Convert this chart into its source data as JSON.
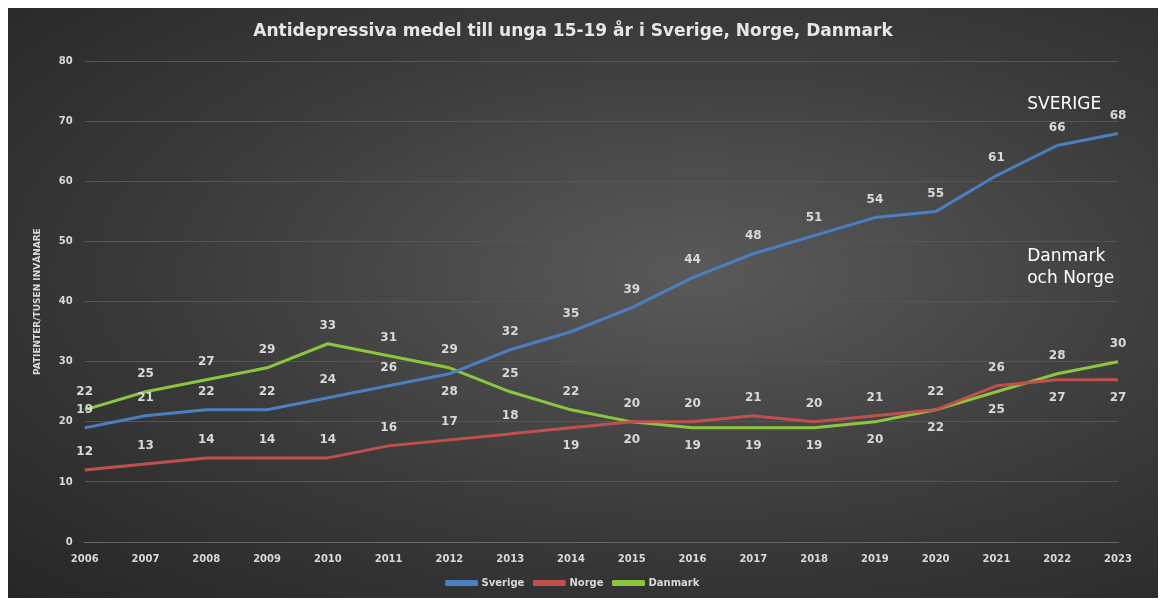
{
  "chart_data": {
    "type": "line",
    "title": "Antidepressiva medel till unga 15-19 år i Sverige, Norge, Danmark",
    "ylabel": "PATIENTER/TUSEN INVÅNARE",
    "categories": [
      "2006",
      "2007",
      "2008",
      "2009",
      "2010",
      "2011",
      "2012",
      "2013",
      "2014",
      "2015",
      "2016",
      "2017",
      "2018",
      "2019",
      "2020",
      "2021",
      "2022",
      "2023"
    ],
    "series": [
      {
        "name": "Sverige",
        "color": "#4a7fc1",
        "values": [
          19,
          21,
          22,
          22,
          24,
          26,
          28,
          32,
          35,
          39,
          44,
          48,
          51,
          54,
          55,
          61,
          66,
          68
        ]
      },
      {
        "name": "Norge",
        "color": "#c0504d",
        "values": [
          12,
          13,
          14,
          14,
          14,
          16,
          17,
          18,
          19,
          20,
          20,
          21,
          20,
          21,
          22,
          26,
          27,
          27
        ]
      },
      {
        "name": "Danmark",
        "color": "#8cc63f",
        "values": [
          22,
          25,
          27,
          29,
          33,
          31,
          29,
          25,
          22,
          20,
          19,
          19,
          19,
          20,
          22,
          25,
          28,
          30
        ]
      }
    ],
    "ylim": [
      0,
      80
    ],
    "yticks": [
      0,
      10,
      20,
      30,
      40,
      50,
      60,
      70,
      80
    ],
    "grid": "y",
    "legend": "bottom",
    "marker": "none",
    "line_style": "solid",
    "data_labels": true,
    "annotations": [
      "SVERIGE",
      "Danmark och Norge"
    ]
  }
}
